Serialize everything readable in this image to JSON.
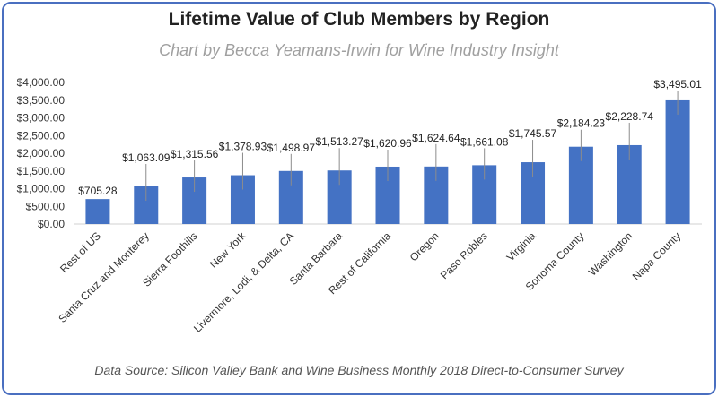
{
  "chart_data": {
    "type": "bar",
    "title": "Lifetime Value of Club Members by Region",
    "subtitle": "Chart by Becca Yeamans-Irwin for Wine Industry Insight",
    "source": "Data Source:  Silicon Valley Bank and Wine Business Monthly 2018 Direct-to-Consumer  Survey",
    "categories": [
      "Rest of US",
      "Santa Cruz and Monterey",
      "Sierra Foothills",
      "New York",
      "Livermore, Lodi, & Delta, CA",
      "Santa Barbara",
      "Rest of California",
      "Oregon",
      "Paso Robles",
      "Virginia",
      "Sonoma County",
      "Washington",
      "Napa County"
    ],
    "values": [
      705.28,
      1063.09,
      1315.56,
      1378.93,
      1498.97,
      1513.27,
      1620.96,
      1624.64,
      1661.08,
      1745.57,
      2184.23,
      2228.74,
      3495.01
    ],
    "value_labels": [
      "$705.28",
      "$1,063.09",
      "$1,315.56",
      "$1,378.93",
      "$1,498.97",
      "$1,513.27",
      "$1,620.96",
      "$1,624.64",
      "$1,661.08",
      "$1,745.57",
      "$2,184.23",
      "$2,228.74",
      "$3,495.01"
    ],
    "yticks": [
      0,
      500,
      1000,
      1500,
      2000,
      2500,
      3000,
      3500,
      4000
    ],
    "ytick_labels": [
      "$0.00",
      "$500.00",
      "$1,000.00",
      "$1,500.00",
      "$2,000.00",
      "$2,500.00",
      "$3,000.00",
      "$3,500.00",
      "$4,000.00"
    ],
    "ylim": [
      0,
      4000
    ],
    "xlabel": "",
    "ylabel": "",
    "grid": false,
    "bar_color": "#4472c4",
    "frame_color": "#4a6fc0"
  }
}
